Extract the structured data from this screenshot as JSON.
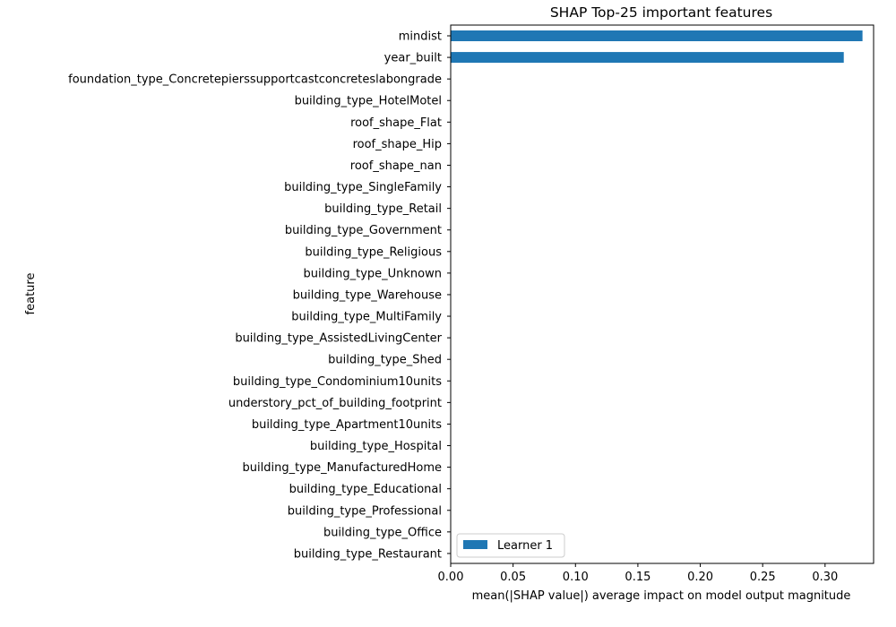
{
  "chart_data": {
    "type": "bar",
    "orientation": "horizontal",
    "title": "SHAP Top-25 important features",
    "xlabel": "mean(|SHAP value|) average impact on model output magnitude",
    "ylabel": "feature",
    "xlim": [
      0,
      0.3389
    ],
    "xticks": [
      "0.00",
      "0.05",
      "0.10",
      "0.15",
      "0.20",
      "0.25",
      "0.30"
    ],
    "xtick_values": [
      0,
      0.05,
      0.1,
      0.15,
      0.2,
      0.25,
      0.3
    ],
    "grid": false,
    "legend_position": "bottom-left",
    "bar_color": "#1f77b4",
    "categories": [
      "mindist",
      "year_built",
      "foundation_type_Concretepierssupportcastconcreteslabongrade",
      "building_type_HotelMotel",
      "roof_shape_Flat",
      "roof_shape_Hip",
      "roof_shape_nan",
      "building_type_SingleFamily",
      "building_type_Retail",
      "building_type_Government",
      "building_type_Religious",
      "building_type_Unknown",
      "building_type_Warehouse",
      "building_type_MultiFamily",
      "building_type_AssistedLivingCenter",
      "building_type_Shed",
      "building_type_Condominium10units",
      "understory_pct_of_building_footprint",
      "building_type_Apartment10units",
      "building_type_Hospital",
      "building_type_ManufacturedHome",
      "building_type_Educational",
      "building_type_Professional",
      "building_type_Office",
      "building_type_Restaurant"
    ],
    "series": [
      {
        "name": "Learner 1",
        "values": [
          0.33,
          0.315,
          0,
          0,
          0,
          0,
          0,
          0,
          0,
          0,
          0,
          0,
          0,
          0,
          0,
          0,
          0,
          0,
          0,
          0,
          0,
          0,
          0,
          0,
          0
        ]
      }
    ]
  }
}
